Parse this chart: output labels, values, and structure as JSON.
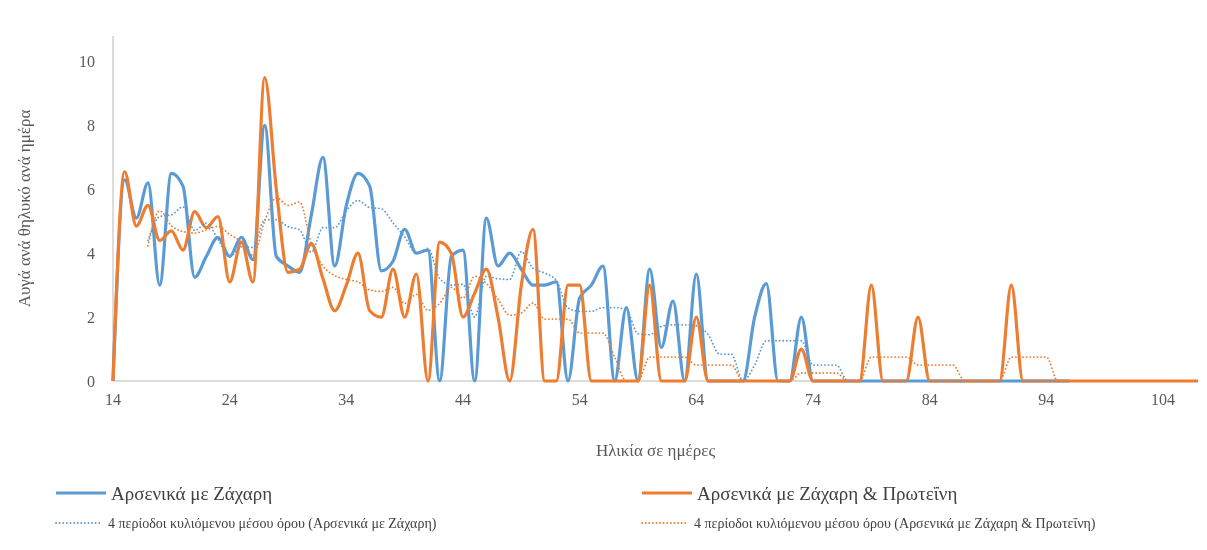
{
  "chart_data": {
    "type": "line",
    "xlabel": "Ηλικία σε ημέρες",
    "ylabel": "Αυγά ανά θηλυκό ανά ημέρα",
    "x": [
      14,
      15,
      16,
      17,
      18,
      19,
      20,
      21,
      22,
      23,
      24,
      25,
      26,
      27,
      28,
      29,
      30,
      31,
      32,
      33,
      34,
      35,
      36,
      37,
      38,
      39,
      40,
      41,
      42,
      43,
      44,
      45,
      46,
      47,
      48,
      49,
      50,
      51,
      52,
      53,
      54,
      55,
      56,
      57,
      58,
      59,
      60,
      61,
      62,
      63,
      64,
      65,
      66,
      67,
      68,
      69,
      70,
      71,
      72,
      73,
      74,
      75,
      76,
      77,
      78,
      79,
      80,
      81,
      82,
      83,
      84,
      85,
      86,
      87,
      88,
      89,
      90,
      91,
      92,
      93,
      94,
      95,
      96,
      97,
      98,
      99,
      100,
      101,
      102,
      103,
      104,
      105,
      106,
      107
    ],
    "xlim": [
      14,
      107
    ],
    "xticks": [
      14,
      24,
      34,
      44,
      54,
      64,
      74,
      84,
      94,
      104
    ],
    "ylim": [
      0,
      10.8
    ],
    "yticks": [
      0,
      2,
      4,
      6,
      8,
      10
    ],
    "legend": "bottom",
    "series": [
      {
        "name": "Αρσενικά  με Ζάχαρη",
        "color": "#5b9bd5",
        "line_style": "solid",
        "values": [
          0,
          6.3,
          5.1,
          6.2,
          3.0,
          6.5,
          6.1,
          3.25,
          3.9,
          4.5,
          3.9,
          4.5,
          3.8,
          8.0,
          3.9,
          3.6,
          3.4,
          5.2,
          7.0,
          3.6,
          5.5,
          6.5,
          6.1,
          3.45,
          3.75,
          4.75,
          4.0,
          4.1,
          0,
          3.9,
          4.1,
          0,
          5.1,
          3.6,
          4.0,
          3.5,
          3.0,
          3.0,
          3.1,
          0,
          2.6,
          3.0,
          3.6,
          0,
          2.3,
          0,
          3.5,
          1.05,
          2.5,
          0,
          3.35,
          0,
          0,
          0,
          0,
          2.0,
          3.05,
          0,
          0,
          2.0,
          0,
          0,
          0,
          0,
          0,
          0,
          0,
          0,
          0,
          0,
          0,
          0,
          0,
          0,
          0,
          0,
          0,
          0,
          0,
          0,
          0,
          0,
          0,
          null,
          null,
          null,
          null,
          null,
          null,
          null,
          null,
          null,
          null,
          null
        ]
      },
      {
        "name": "Αρσενικά  με Ζάχαρη & Πρωτεΐνη",
        "color": "#ed7d31",
        "line_style": "solid",
        "values": [
          0,
          6.55,
          4.85,
          5.5,
          4.4,
          4.7,
          4.1,
          5.3,
          4.8,
          5.15,
          3.1,
          4.35,
          3.1,
          9.5,
          6.0,
          3.4,
          3.5,
          4.3,
          3.2,
          2.2,
          3.0,
          4.0,
          2.2,
          2.0,
          3.5,
          2.0,
          3.35,
          0,
          4.35,
          4.0,
          2.0,
          2.75,
          3.5,
          2.0,
          0,
          3.0,
          4.75,
          0,
          0,
          3.0,
          3.0,
          0,
          0,
          0,
          0,
          0,
          3.0,
          0,
          0,
          0,
          2.0,
          0,
          0,
          0,
          0,
          0,
          0,
          0,
          0,
          1.0,
          0,
          0,
          0,
          0,
          0,
          3.0,
          0,
          0,
          0,
          2.0,
          0,
          0,
          0,
          0,
          0,
          0,
          0,
          3.0,
          0,
          0,
          0,
          0,
          0,
          0,
          0,
          0,
          0,
          0,
          0,
          0,
          0,
          0,
          0,
          0
        ]
      },
      {
        "name": "4 περίοδοι κυλιόμενου μέσου όρου (Αρσενικά  με Ζάχαρη)",
        "color": "#5b9bd5",
        "line_style": "dotted",
        "values": [
          null,
          null,
          null,
          4.4,
          5.15,
          5.2,
          5.45,
          4.71,
          4.94,
          4.44,
          3.89,
          4.2,
          4.18,
          5.05,
          5.05,
          4.83,
          4.73,
          4.03,
          4.8,
          4.8,
          5.33,
          5.65,
          5.43,
          5.39,
          4.95,
          4.51,
          3.99,
          4.15,
          3.21,
          3.0,
          3.03,
          2.0,
          3.28,
          3.2,
          3.18,
          4.05,
          3.53,
          3.38,
          3.15,
          2.28,
          2.18,
          2.18,
          2.3,
          2.3,
          2.23,
          1.48,
          1.45,
          1.71,
          1.76,
          1.76,
          1.73,
          1.46,
          0.84,
          0.84,
          0,
          0.5,
          1.26,
          1.26,
          1.26,
          1.26,
          0.5,
          0.5,
          0.5,
          0,
          0,
          0,
          0,
          0,
          0,
          0,
          0,
          0,
          0,
          0,
          0,
          0,
          0,
          0,
          0,
          0,
          0,
          0,
          0,
          null,
          null,
          null,
          null,
          null,
          null,
          null,
          null,
          null,
          null,
          null
        ]
      },
      {
        "name": "4 περίοδοι κυλιόμενου μέσου όρου (Αρσενικά  με Ζάχαρη & Πρωτεΐνη)",
        "color": "#ed7d31",
        "line_style": "dotted",
        "values": [
          null,
          null,
          null,
          4.23,
          5.33,
          4.86,
          4.68,
          4.63,
          4.73,
          4.84,
          4.59,
          4.35,
          3.93,
          5.01,
          5.74,
          5.5,
          5.6,
          4.3,
          3.6,
          3.3,
          3.18,
          3.1,
          2.85,
          2.8,
          2.93,
          2.43,
          2.71,
          2.21,
          2.43,
          2.93,
          2.59,
          3.28,
          3.06,
          2.56,
          2.06,
          2.13,
          2.44,
          1.94,
          1.94,
          1.94,
          1.5,
          1.5,
          1.5,
          0.75,
          0,
          0,
          0.75,
          0.75,
          0.75,
          0.75,
          0.5,
          0.5,
          0.5,
          0.5,
          0,
          0,
          0,
          0,
          0,
          0.25,
          0.25,
          0.25,
          0.25,
          0,
          0,
          0.75,
          0.75,
          0.75,
          0.75,
          0.5,
          0.5,
          0.5,
          0.5,
          0,
          0,
          0,
          0,
          0.75,
          0.75,
          0.75,
          0.75,
          0,
          0,
          0,
          0,
          0,
          0,
          0,
          0,
          0,
          0,
          0,
          0,
          0
        ]
      }
    ]
  }
}
